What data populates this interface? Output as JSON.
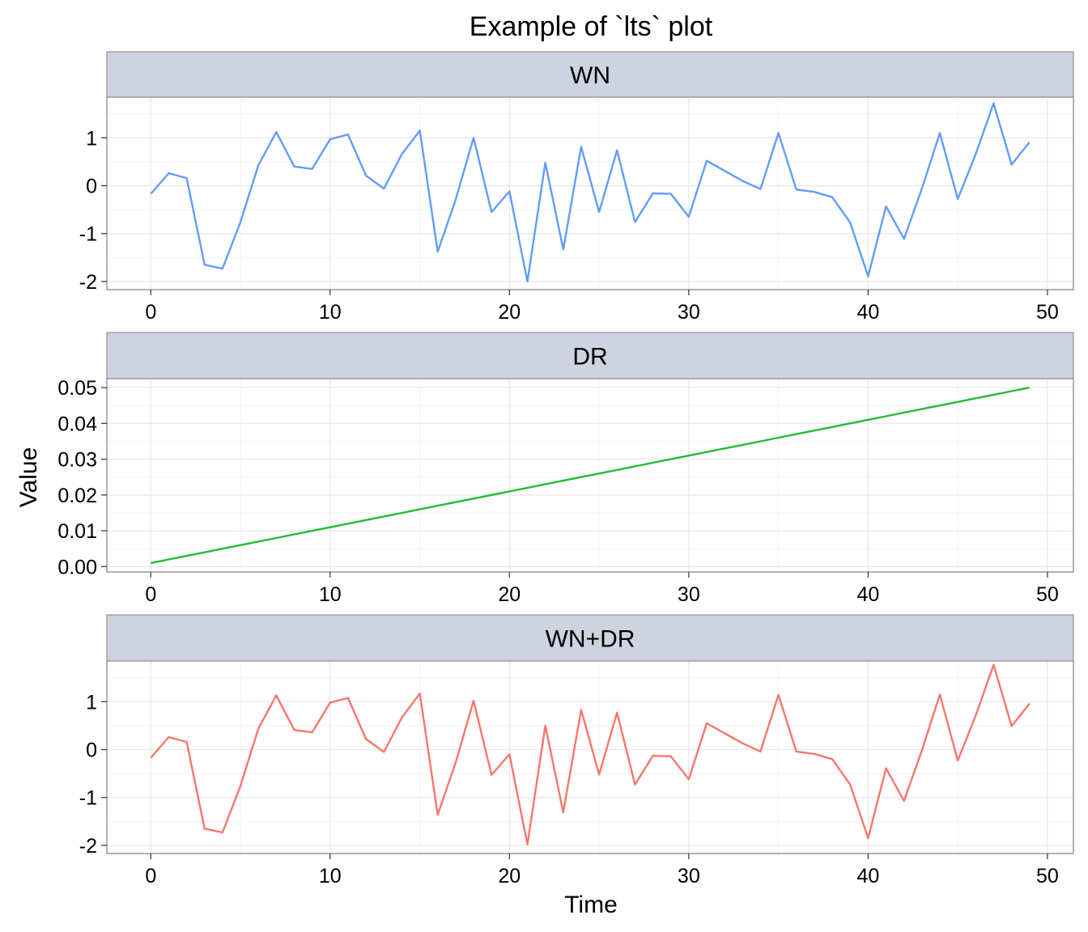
{
  "chart_data": {
    "type": "line",
    "title": "Example of `lts` plot",
    "xlabel": "Time",
    "ylabel": "Value",
    "x": [
      0,
      1,
      2,
      3,
      4,
      5,
      6,
      7,
      8,
      9,
      10,
      11,
      12,
      13,
      14,
      15,
      16,
      17,
      18,
      19,
      20,
      21,
      22,
      23,
      24,
      25,
      26,
      27,
      28,
      29,
      30,
      31,
      32,
      33,
      34,
      35,
      36,
      37,
      38,
      39,
      40,
      41,
      42,
      43,
      44,
      45,
      46,
      47,
      48,
      49
    ],
    "xlim": [
      -2.45,
      51.45
    ],
    "xticks": [
      0,
      10,
      20,
      30,
      40,
      50
    ],
    "grid": true,
    "panels": [
      {
        "name": "WN",
        "color": "#619cff",
        "ylim": [
          -2.17,
          1.85
        ],
        "yticks": [
          -2,
          -1,
          0,
          1
        ],
        "ytick_labels": [
          "-2",
          "-1",
          "0",
          "1"
        ],
        "values": [
          -0.17,
          0.26,
          0.16,
          -1.65,
          -1.73,
          -0.76,
          0.43,
          1.12,
          0.4,
          0.35,
          0.97,
          1.07,
          0.21,
          -0.06,
          0.66,
          1.15,
          -1.38,
          -0.29,
          1.0,
          -0.55,
          -0.12,
          -2.0,
          0.48,
          -1.33,
          0.81,
          -0.55,
          0.74,
          -0.76,
          -0.16,
          -0.17,
          -0.65,
          0.52,
          0.31,
          0.1,
          -0.07,
          1.1,
          -0.08,
          -0.13,
          -0.24,
          -0.77,
          -1.89,
          -0.43,
          -1.11,
          -0.06,
          1.1,
          -0.28,
          0.66,
          1.72,
          0.44,
          0.91
        ]
      },
      {
        "name": "DR",
        "color": "#1fbc37",
        "ylim": [
          -0.0015,
          0.0525
        ],
        "yticks": [
          0,
          0.01,
          0.02,
          0.03,
          0.04,
          0.05
        ],
        "ytick_labels": [
          "0.00",
          "0.01",
          "0.02",
          "0.03",
          "0.04",
          "0.05"
        ],
        "values": [
          0.001,
          0.002,
          0.003,
          0.004,
          0.005,
          0.006,
          0.007,
          0.008,
          0.009,
          0.01,
          0.011,
          0.012,
          0.013,
          0.014,
          0.015,
          0.016,
          0.017,
          0.018,
          0.019,
          0.02,
          0.021,
          0.022,
          0.023,
          0.024,
          0.025,
          0.026,
          0.027,
          0.028,
          0.029,
          0.03,
          0.031,
          0.032,
          0.033,
          0.034,
          0.035,
          0.036,
          0.037,
          0.038,
          0.039,
          0.04,
          0.041,
          0.042,
          0.043,
          0.044,
          0.045,
          0.046,
          0.047,
          0.048,
          0.049,
          0.05
        ]
      },
      {
        "name": "WN+DR",
        "color": "#f8766d",
        "ylim": [
          -2.17,
          1.85
        ],
        "yticks": [
          -2,
          -1,
          0,
          1
        ],
        "ytick_labels": [
          "-2",
          "-1",
          "0",
          "1"
        ],
        "values": [
          -0.17,
          0.26,
          0.16,
          -1.65,
          -1.73,
          -0.76,
          0.44,
          1.13,
          0.41,
          0.36,
          0.98,
          1.08,
          0.22,
          -0.05,
          0.67,
          1.17,
          -1.36,
          -0.27,
          1.02,
          -0.53,
          -0.1,
          -1.98,
          0.5,
          -1.31,
          0.83,
          -0.52,
          0.77,
          -0.73,
          -0.13,
          -0.14,
          -0.62,
          0.55,
          0.34,
          0.13,
          -0.04,
          1.14,
          -0.04,
          -0.09,
          -0.2,
          -0.73,
          -1.85,
          -0.39,
          -1.07,
          -0.02,
          1.15,
          -0.23,
          0.71,
          1.77,
          0.49,
          0.96
        ]
      }
    ]
  }
}
